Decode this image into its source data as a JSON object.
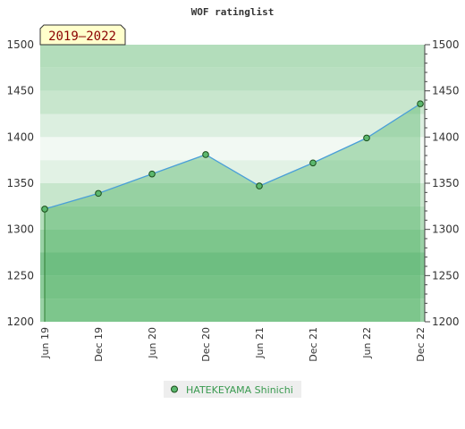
{
  "chart_data": {
    "type": "area",
    "title": "WOF ratinglist",
    "badge": "2019–2022",
    "categories": [
      "Jun 19",
      "Dec 19",
      "Jun 20",
      "Dec 20",
      "Jun 21",
      "Dec 21",
      "Jun 22",
      "Dec 22"
    ],
    "series": [
      {
        "name": "HATEKEYAMA Shinichi",
        "values": [
          1322,
          1339,
          1360,
          1381,
          1347,
          1372,
          1399,
          1436
        ]
      }
    ],
    "ylim": [
      1200,
      1500
    ],
    "yticks": [
      1200,
      1250,
      1300,
      1350,
      1400,
      1450,
      1500
    ],
    "y_axis_both_sides": true,
    "grid": false,
    "legend_position": "bottom",
    "colors": {
      "area_fill": "#5cb86e",
      "line": "#4a9fd8",
      "marker_fill": "#5cb86e",
      "marker_stroke": "#1a4d1a",
      "badge_bg": "#ffffcc",
      "legend_text": "#3a9a50"
    }
  }
}
